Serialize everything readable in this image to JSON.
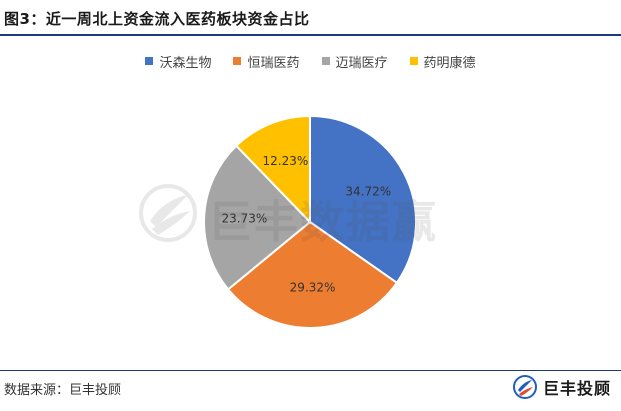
{
  "header": {
    "title": "图3：近一周北上资金流入医药板块资金占比"
  },
  "watermark": {
    "text": "巨丰数据赢"
  },
  "footer": {
    "source": "数据来源：巨丰投顾",
    "logo_text": "巨丰投顾"
  },
  "chart_data": {
    "type": "pie",
    "legend_position": "top",
    "slices": [
      {
        "label": "沃森生物",
        "value": 34.72,
        "display": "34.72%",
        "color": "#4472C4"
      },
      {
        "label": "恒瑞医药",
        "value": 29.32,
        "display": "29.32%",
        "color": "#ED7D31"
      },
      {
        "label": "迈瑞医疗",
        "value": 23.73,
        "display": "23.73%",
        "color": "#A5A5A5"
      },
      {
        "label": "药明康德",
        "value": 12.23,
        "display": "12.23%",
        "color": "#FFC000"
      }
    ]
  }
}
